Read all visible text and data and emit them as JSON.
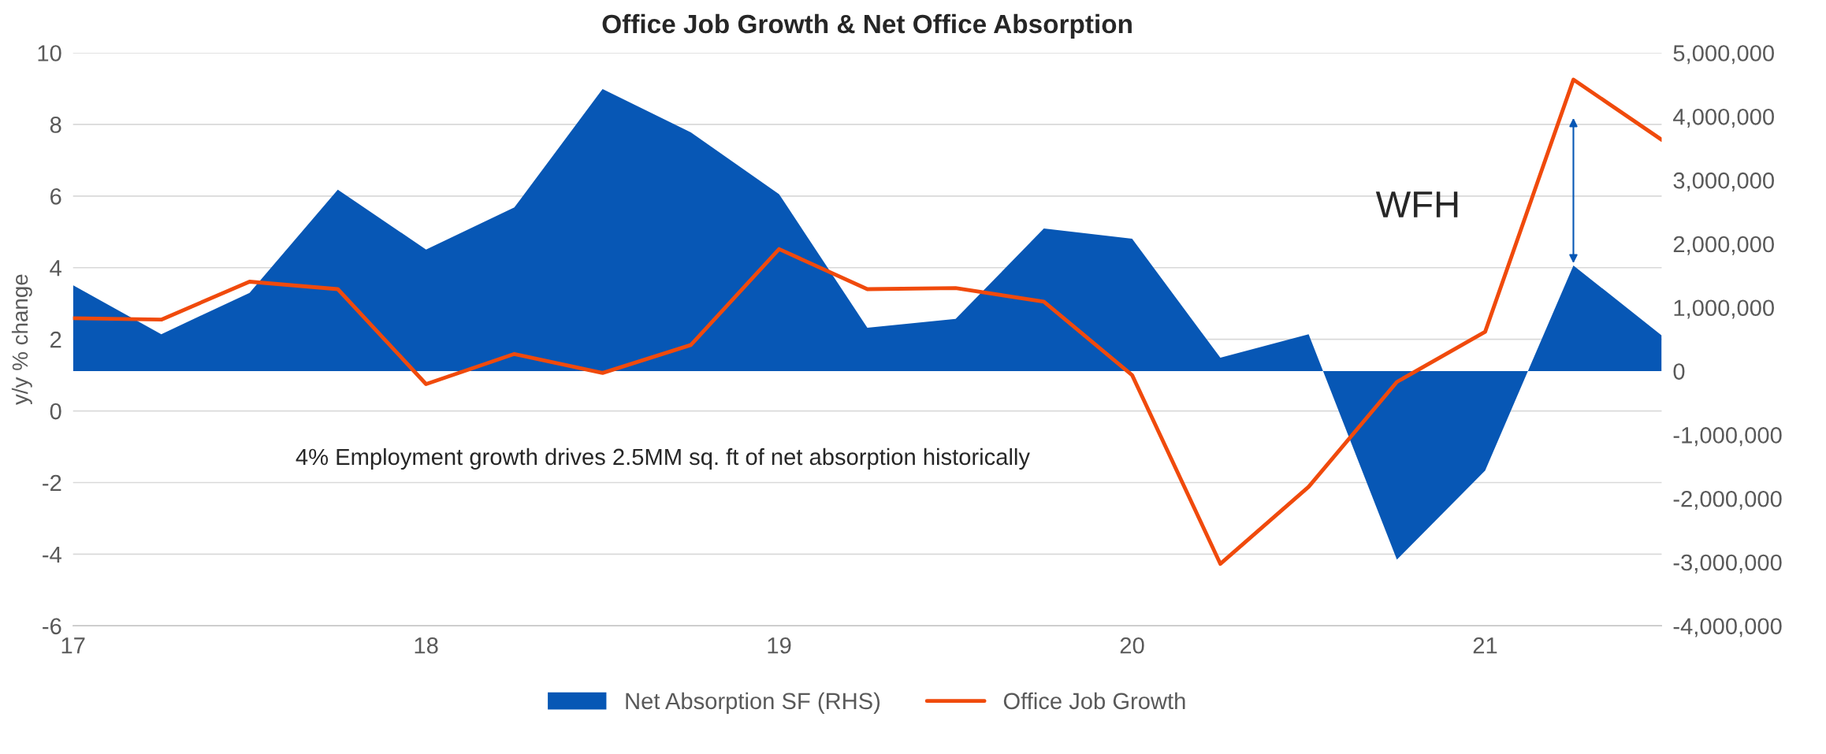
{
  "chart_data": {
    "type": "line",
    "title": "Office Job Growth & Net Office Absorption",
    "ylabel": "y/y % change",
    "x": [
      17,
      17.25,
      17.5,
      17.75,
      18,
      18.25,
      18.5,
      18.75,
      19,
      19.25,
      19.5,
      19.75,
      20,
      20.25,
      20.5,
      20.75,
      21,
      21.25,
      21.5
    ],
    "series": [
      {
        "name": "Net Absorption SF (RHS)",
        "type": "area",
        "axis": "y2",
        "color": "#0757b5",
        "values": [
          1350000,
          580000,
          1230000,
          2850000,
          1910000,
          2570000,
          4430000,
          3750000,
          2780000,
          680000,
          820000,
          2240000,
          2080000,
          210000,
          580000,
          -2960000,
          -1560000,
          1660000,
          560000
        ]
      },
      {
        "name": "Office Job Growth",
        "color": "#f04a0c",
        "values": [
          2.59,
          2.55,
          3.61,
          3.4,
          0.75,
          1.59,
          1.06,
          1.84,
          4.52,
          3.4,
          3.43,
          3.05,
          1.0,
          -4.27,
          -2.12,
          0.81,
          2.21,
          9.25,
          7.57
        ]
      }
    ],
    "xlim": [
      17,
      21.5
    ],
    "xticks": [
      17,
      18,
      19,
      20,
      21
    ],
    "ylim": [
      -6,
      10
    ],
    "yticks": [
      -6,
      -4,
      -2,
      0,
      2,
      4,
      6,
      8,
      10
    ],
    "y2lim": [
      -4000000,
      5000000
    ],
    "y2ticks": [
      {
        "value": -4000000,
        "label": "-4,000,000"
      },
      {
        "value": -3000000,
        "label": "-3,000,000"
      },
      {
        "value": -2000000,
        "label": "-2,000,000"
      },
      {
        "value": -1000000,
        "label": "-1,000,000"
      },
      {
        "value": 0,
        "label": "0"
      },
      {
        "value": 1000000,
        "label": "1,000,000"
      },
      {
        "value": 2000000,
        "label": "2,000,000"
      },
      {
        "value": 3000000,
        "label": "3,000,000"
      },
      {
        "value": 4000000,
        "label": "4,000,000"
      },
      {
        "value": 5000000,
        "label": "5,000,000"
      }
    ],
    "annotations": [
      "WFH",
      "4% Employment growth drives 2.5MM sq. ft of net absorption historically"
    ],
    "grid": "y",
    "legend": "bottom",
    "line_style": "solid",
    "marker": "none"
  }
}
